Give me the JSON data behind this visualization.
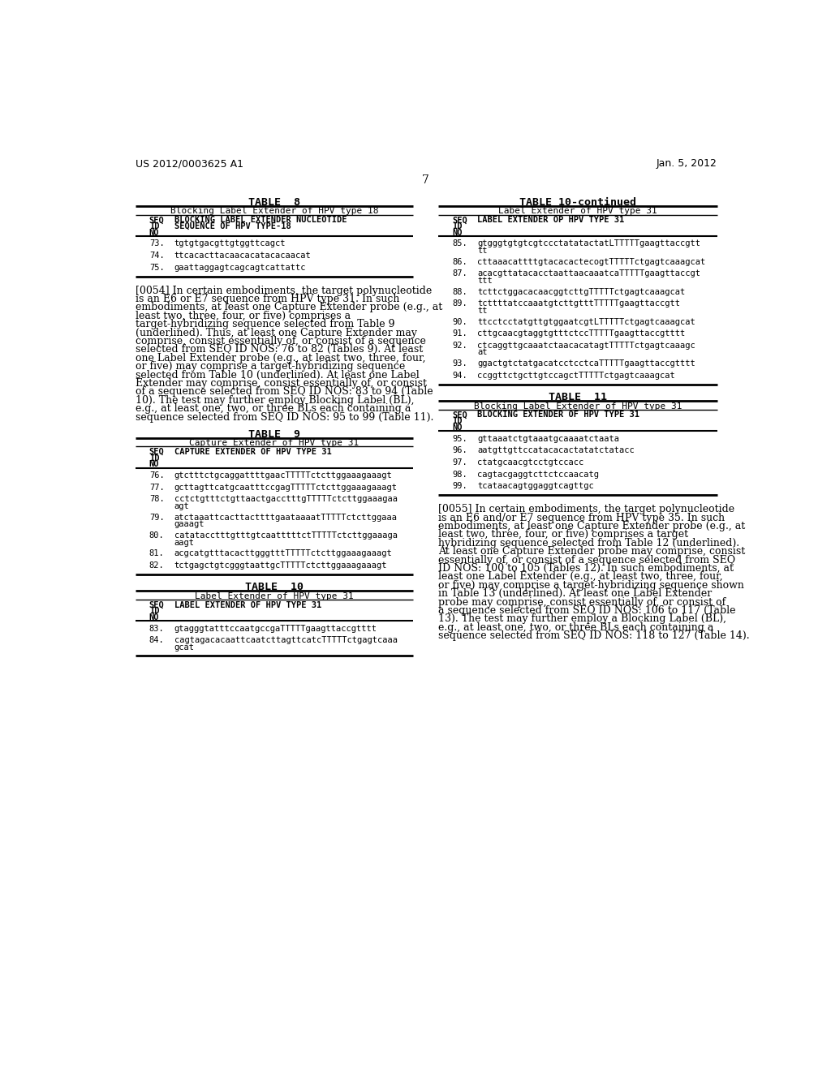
{
  "page_header_left": "US 2012/0003625 A1",
  "page_header_right": "Jan. 5, 2012",
  "page_number": "7",
  "background_color": "#ffffff",
  "left_col": {
    "table8": {
      "title": "TABLE  8",
      "subtitle": "Blocking Label Extender of HPV type 18",
      "col1_header": [
        "SEQ",
        "ID",
        "NO"
      ],
      "col2_header": [
        "BLOCKING LABEL EXTENDER NUCLEOTIDE",
        "SEQUENCE OF HPV TYPE-18"
      ],
      "rows": [
        [
          "73.",
          "tgtgtgacgttgtggttcagct"
        ],
        [
          "74.",
          "ttcacacttacaacacatacacaacat"
        ],
        [
          "75.",
          "gaattaggagtcagcagtcattattc"
        ]
      ]
    },
    "para0054": "[0054]    In certain embodiments, the target polynucleotide is an E6 or E7 sequence from HPV type 31. In such embodiments, at least one Capture Extender probe (e.g., at least two, three, four, or five) comprises a target-hybridizing sequence selected from Table 9 (underlined). Thus, at least one Capture Extender may comprise, consist essentially of, or consist of a sequence selected from SEQ ID NOS: 76 to 82 (Tables 9). At least one Label Extender probe (e.g., at least two, three, four, or five) may comprise a target-hybridizing sequence selected from Table 10 (underlined). At least one Label Extender may comprise, consist essentially of, or consist of a sequence selected from SEQ ID NOS: 83 to 94 (Table 10). The test may further employ Blocking Label (BL), e.g., at least one, two, or three BLs each containing a sequence selected from SEQ ID NOS: 95 to 99 (Table 11).",
    "table9": {
      "title": "TABLE  9",
      "subtitle": "Capture Extender of HPV type 31",
      "col1_header": [
        "SEQ",
        "ID",
        "NO"
      ],
      "col2_header": [
        "CAPTURE EXTENDER OF HPV TYPE 31"
      ],
      "rows": [
        [
          "76.",
          "gtctttctgcaggattttgaacTTTTTctcttggaaagaaagt",
          false
        ],
        [
          "77.",
          "gcttagttcatgcaatttccgagTTTTTctcttggaaagaaagt",
          false
        ],
        [
          "78.",
          "cctctgtttctgttaactgacctttgTTTTTctcttggaaagaa\nagt",
          true
        ],
        [
          "79.",
          "atctaaattcacttacttttgaataaaatTTTTTctcttggaaa\ngaaagt",
          true
        ],
        [
          "80.",
          "catatacctttgtttgtcaatttttctTTTTTctcttggaaaga\naagt",
          true
        ],
        [
          "81.",
          "acgcatgtttacacttgggtttTTTTTctcttggaaagaaagt",
          false
        ],
        [
          "82.",
          "tctgagctgtcgggtaattgcTTTTTctcttggaaagaaagt",
          false
        ]
      ]
    },
    "table10_partial": {
      "title": "TABLE  10",
      "subtitle": "Label Extender of HPV type 31",
      "col1_header": [
        "SEQ",
        "ID",
        "NO"
      ],
      "col2_header": [
        "LABEL EXTENDER OF HPV TYPE 31"
      ],
      "rows": [
        [
          "83.",
          "gtagggtatttccaatgccgaTTTTTgaagttaccgtttt",
          false
        ],
        [
          "84.",
          "cagtagacacaattcaatcttagttcatcTTTTTctgagtcaaa\ngcat",
          true
        ]
      ]
    }
  },
  "right_col": {
    "table10_cont": {
      "title": "TABLE 10-continued",
      "subtitle": "Label Extender of HPV type 31",
      "col1_header": [
        "SEQ",
        "ID",
        "NO"
      ],
      "col2_header": [
        "LABEL EXTENDER OP HPV TYPE 31"
      ],
      "rows": [
        [
          "85.",
          "gtgggtgtgtcgtccctatatactatLTTTTTgaagttaccgtt\ntt",
          true
        ],
        [
          "86.",
          "cttaaacattttgtacacactecogtTTTTTctgagtcaaagcat",
          false
        ],
        [
          "87.",
          "acacgttatacacctaattaacaaatcaTTTTTgaagttaccgt\nttt",
          true
        ],
        [
          "88.",
          "tcttctggacacaacggtcttgTTTTTctgagtcaaagcat",
          false
        ],
        [
          "89.",
          "tcttttatccaaatgtcttgtttTTTTTgaagttaccgtt\ntt",
          true
        ],
        [
          "90.",
          "ttcctcctatgttgtggaatcgtLTTTTTctgagtcaaagcat",
          false
        ],
        [
          "91.",
          "cttgcaacgtaggtgtttctccTTTTTgaagttaccgtttt",
          false
        ],
        [
          "92.",
          "ctcaggttgcaaatctaacacatagtTTTTTctgagtcaaagc\nat",
          true
        ],
        [
          "93.",
          "ggactgtctatgacatcctcctcaTTTTTgaagttaccgtttt",
          false
        ],
        [
          "94.",
          "ccggttctgcttgtccagctTTTTTctgagtcaaagcat",
          false
        ]
      ]
    },
    "table11": {
      "title": "TABLE  11",
      "subtitle": "Blocking Label Extender of HPV type 31",
      "col1_header": [
        "SEQ",
        "ID",
        "NO"
      ],
      "col2_header": [
        "BLOCKING EXTENDER OF HPV TYPE 31"
      ],
      "rows": [
        [
          "95.",
          "gttaaatctgtaaatgcaaaatctaata"
        ],
        [
          "96.",
          "aatgttgttccatacacactatatctatacc"
        ],
        [
          "97.",
          "ctatgcaacgtcctgtccacc"
        ],
        [
          "98.",
          "cagtacgaggtcttctccaacatg"
        ],
        [
          "99.",
          "tcataacagtggaggtcagttgc"
        ]
      ]
    },
    "para0055": "[0055]    In certain embodiments, the target polynucleotide is an E6 and/or E7 sequence from HPV type 35. In such embodiments, at least one Capture Extender probe (e.g., at least two, three, four, or five) comprises a target hybridizing sequence selected from Table 12 (underlined). At least one Capture Extender probe may comprise, consist essentially of, or consist of a sequence selected from SEQ ID NOS: 100 to 105 (Tables 12). In such embodiments, at least one Label Extender (e.g., at least two, three, four, or five) may comprise a target-hybridizing sequence shown in Table 13 (underlined). At least one Label Extender probe may comprise, consist essentially of, or consist of a sequence selected from SEQ ID NOS: 106 to 117 (Table 13). The test may further employ a Blocking Label (BL), e.g., at least one, two, or three BLs each containing a sequence selected from SEQ ID NOS: 118 to 127 (Table 14)."
  }
}
